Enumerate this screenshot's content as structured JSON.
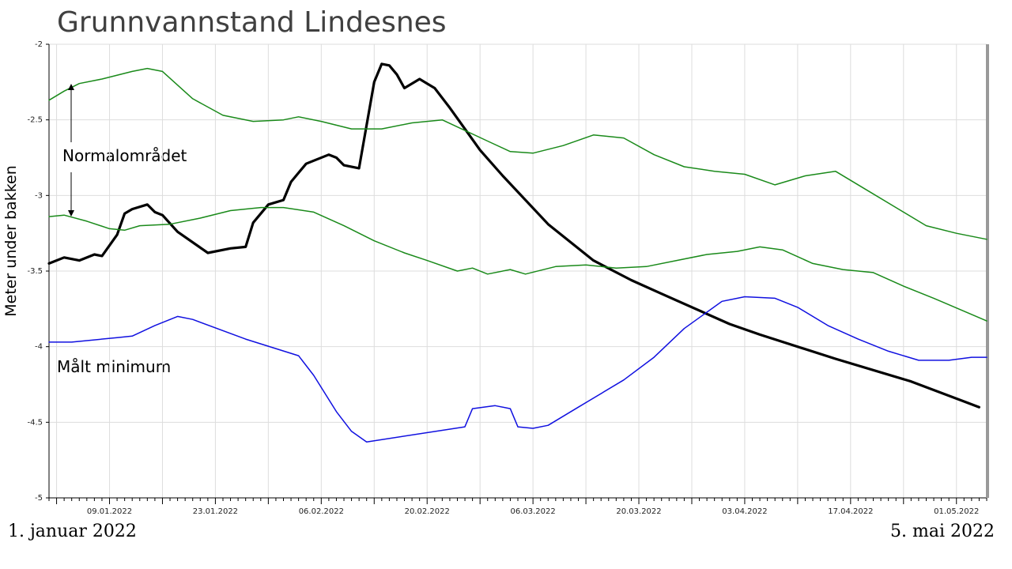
{
  "title": "Grunnvannstand Lindesnes",
  "ylabel": "Meter under bakken",
  "date_start": "1. januar 2022",
  "date_end": "5. mai 2022",
  "annotations": {
    "normal": "Normalområdet",
    "min": "Målt minimum"
  },
  "colors": {
    "measured": "#000000",
    "normal": "#1a8a1a",
    "minimum": "#1010e0",
    "grid": "#dddddd"
  },
  "chart_data": {
    "type": "line",
    "title": "Grunnvannstand Lindesnes",
    "ylabel": "Meter under bakken",
    "xlim": [
      "2022-01-01",
      "2022-05-05"
    ],
    "ylim": [
      -5,
      -2
    ],
    "yticks": [
      -2,
      -2.5,
      -3,
      -3.5,
      -4,
      -4.5,
      -5
    ],
    "xtick_labels": [
      "09.01.2022",
      "23.01.2022",
      "06.02.2022",
      "20.02.2022",
      "06.03.2022",
      "20.03.2022",
      "03.04.2022",
      "17.04.2022",
      "01.05.2022"
    ],
    "grid": true,
    "series": [
      {
        "key": "measured",
        "x": [
          "2022-01-01",
          "2022-01-03",
          "2022-01-05",
          "2022-01-07",
          "2022-01-08",
          "2022-01-10",
          "2022-01-11",
          "2022-01-12",
          "2022-01-14",
          "2022-01-15",
          "2022-01-16",
          "2022-01-18",
          "2022-01-22",
          "2022-01-25",
          "2022-01-27",
          "2022-01-28",
          "2022-01-30",
          "2022-02-01",
          "2022-02-02",
          "2022-02-04",
          "2022-02-05",
          "2022-02-07",
          "2022-02-08",
          "2022-02-09",
          "2022-02-11",
          "2022-02-13",
          "2022-02-14",
          "2022-02-15",
          "2022-02-16",
          "2022-02-17",
          "2022-02-19",
          "2022-02-20",
          "2022-02-21",
          "2022-02-23",
          "2022-02-25",
          "2022-02-27",
          "2022-03-02",
          "2022-03-08",
          "2022-03-14",
          "2022-03-19",
          "2022-03-23",
          "2022-04-01",
          "2022-04-05",
          "2022-04-15",
          "2022-04-25",
          "2022-05-04"
        ],
        "y": [
          -3.45,
          -3.41,
          -3.43,
          -3.39,
          -3.4,
          -3.26,
          -3.12,
          -3.09,
          -3.06,
          -3.11,
          -3.13,
          -3.24,
          -3.38,
          -3.35,
          -3.34,
          -3.18,
          -3.06,
          -3.03,
          -2.91,
          -2.79,
          -2.77,
          -2.73,
          -2.75,
          -2.8,
          -2.82,
          -2.25,
          -2.13,
          -2.14,
          -2.2,
          -2.29,
          -2.23,
          -2.26,
          -2.29,
          -2.42,
          -2.56,
          -2.7,
          -2.87,
          -3.19,
          -3.43,
          -3.56,
          -3.65,
          -3.85,
          -3.92,
          -4.08,
          -4.23,
          -4.4
        ]
      },
      {
        "key": "normal",
        "x": [
          "2022-01-01",
          "2022-01-03",
          "2022-01-05",
          "2022-01-08",
          "2022-01-12",
          "2022-01-14",
          "2022-01-16",
          "2022-01-20",
          "2022-01-24",
          "2022-01-28",
          "2022-02-01",
          "2022-02-03",
          "2022-02-06",
          "2022-02-10",
          "2022-02-14",
          "2022-02-18",
          "2022-02-22",
          "2022-02-25",
          "2022-02-28",
          "2022-03-03",
          "2022-03-06",
          "2022-03-10",
          "2022-03-14",
          "2022-03-18",
          "2022-03-22",
          "2022-03-26",
          "2022-03-30",
          "2022-04-03",
          "2022-04-07",
          "2022-04-11",
          "2022-04-15",
          "2022-04-19",
          "2022-04-23",
          "2022-04-27",
          "2022-05-01",
          "2022-05-05"
        ],
        "y": [
          -2.37,
          -2.31,
          -2.26,
          -2.23,
          -2.18,
          -2.16,
          -2.18,
          -2.36,
          -2.47,
          -2.51,
          -2.5,
          -2.48,
          -2.51,
          -2.56,
          -2.56,
          -2.52,
          -2.5,
          -2.57,
          -2.64,
          -2.71,
          -2.72,
          -2.67,
          -2.6,
          -2.62,
          -2.73,
          -2.81,
          -2.84,
          -2.86,
          -2.93,
          -2.87,
          -2.84,
          -2.96,
          -3.08,
          -3.2,
          -3.25,
          -3.29
        ]
      },
      {
        "key": "normal",
        "x": [
          "2022-01-01",
          "2022-01-03",
          "2022-01-06",
          "2022-01-09",
          "2022-01-11",
          "2022-01-13",
          "2022-01-17",
          "2022-01-21",
          "2022-01-25",
          "2022-01-29",
          "2022-02-01",
          "2022-02-05",
          "2022-02-09",
          "2022-02-13",
          "2022-02-17",
          "2022-02-20",
          "2022-02-24",
          "2022-02-26",
          "2022-02-28",
          "2022-03-03",
          "2022-03-05",
          "2022-03-09",
          "2022-03-13",
          "2022-03-17",
          "2022-03-21",
          "2022-03-25",
          "2022-03-29",
          "2022-04-02",
          "2022-04-05",
          "2022-04-08",
          "2022-04-12",
          "2022-04-16",
          "2022-04-20",
          "2022-04-24",
          "2022-04-28",
          "2022-05-05"
        ],
        "y": [
          -3.14,
          -3.13,
          -3.17,
          -3.22,
          -3.23,
          -3.2,
          -3.19,
          -3.15,
          -3.1,
          -3.08,
          -3.08,
          -3.11,
          -3.2,
          -3.3,
          -3.38,
          -3.43,
          -3.5,
          -3.48,
          -3.52,
          -3.49,
          -3.52,
          -3.47,
          -3.46,
          -3.48,
          -3.47,
          -3.43,
          -3.39,
          -3.37,
          -3.34,
          -3.36,
          -3.45,
          -3.49,
          -3.51,
          -3.6,
          -3.68,
          -3.83
        ]
      },
      {
        "key": "minimum",
        "x": [
          "2022-01-01",
          "2022-01-04",
          "2022-01-10",
          "2022-01-12",
          "2022-01-15",
          "2022-01-18",
          "2022-01-20",
          "2022-01-27",
          "2022-02-03",
          "2022-02-05",
          "2022-02-08",
          "2022-02-10",
          "2022-02-12",
          "2022-02-25",
          "2022-02-26",
          "2022-03-01",
          "2022-03-03",
          "2022-03-04",
          "2022-03-06",
          "2022-03-08",
          "2022-03-12",
          "2022-03-18",
          "2022-03-22",
          "2022-03-26",
          "2022-03-31",
          "2022-04-03",
          "2022-04-07",
          "2022-04-10",
          "2022-04-14",
          "2022-04-18",
          "2022-04-22",
          "2022-04-26",
          "2022-04-30",
          "2022-05-03",
          "2022-05-05"
        ],
        "y": [
          -3.97,
          -3.97,
          -3.94,
          -3.93,
          -3.86,
          -3.8,
          -3.82,
          -3.95,
          -4.06,
          -4.19,
          -4.43,
          -4.56,
          -4.63,
          -4.53,
          -4.41,
          -4.39,
          -4.41,
          -4.53,
          -4.54,
          -4.52,
          -4.4,
          -4.22,
          -4.07,
          -3.88,
          -3.7,
          -3.67,
          -3.68,
          -3.74,
          -3.86,
          -3.95,
          -4.03,
          -4.09,
          -4.09,
          -4.07,
          -4.07
        ]
      }
    ]
  }
}
